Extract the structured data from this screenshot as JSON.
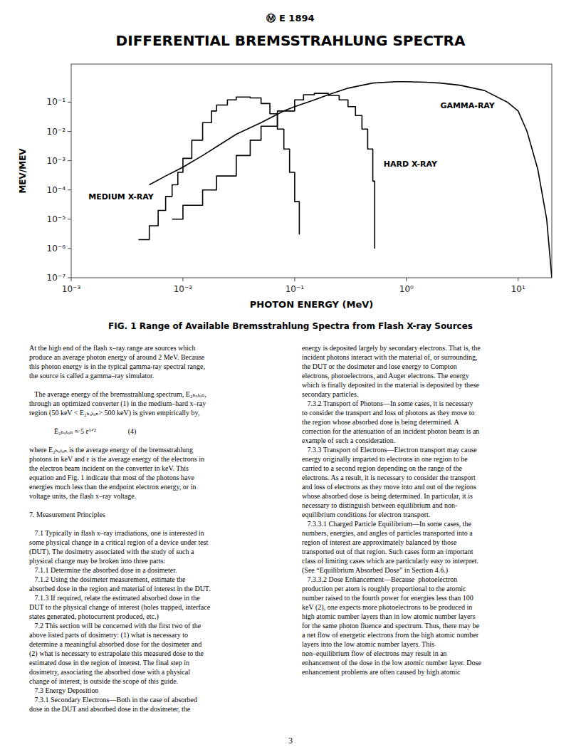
{
  "page": {
    "header": "Ⓜ E 1894",
    "caption": "FIG. 1 Range of Available Bremsstrahlung Spectra from Flash X-ray Sources",
    "page_number": "3",
    "body_text_left": [
      "At the high end of the flash x–ray range are sources which",
      "produce an average photon energy of around 2 MeV. Because",
      "this photon energy is in the typical gamma-ray spectral range,",
      "the source is called a gamma–ray simulator.",
      "",
      "   The average energy of the bremsstrahlung spectrum, E₂ₕₒₜₒₙ,",
      "through an optimized converter (1) in the medium–hard x–ray",
      "region (50 keV < E₂ₕₒₜₒₙ> 500 keV) is given empirically by,",
      "",
      "              Ē₂ₕₒₜₒₙ ≈ 5 ε¹ᐟ²                  (4)",
      "",
      "where E₂ₕₒₜₒₙ is the average energy of the bremsstrahlung",
      "photons in keV and ε is the average energy of the electrons in",
      "the electron beam incident on the converter in keV. This",
      "equation and Fig. 1 indicate that most of the photons have",
      "energies much less than the endpoint electron energy, or in",
      "voltage units, the flash x–ray voltage.",
      "",
      "7. Measurement Principles",
      "",
      "   7.1 Typically in flash x–ray irradiations, one is interested in",
      "some physical change in a critical region of a device under test",
      "(DUT). The dosimetry associated with the study of such a",
      "physical change may be broken into three parts:",
      "   7.1.1 Determine the absorbed dose in a dosimeter.",
      "   7.1.2 Using the dosimeter measurement, estimate the",
      "absorbed dose in the region and material of interest in the DUT.",
      "   7.1.3 If required, relate the estimated absorbed dose in the",
      "DUT to the physical change of interest (holes trapped, interface",
      "states generated, photocurrent produced, etc.)",
      "   7.2 This section will be concerned with the first two of the",
      "above listed parts of dosimetry: (1) what is necessary to",
      "determine a meaningful absorbed dose for the dosimeter and",
      "(2) what is necessary to extrapolate this measured dose to the",
      "estimated dose in the region of interest. The final step in",
      "dosimetry, associating the absorbed dose with a physical",
      "change of interest, is outside the scope of this guide.",
      "   7.3 Energy Deposition",
      "   7.3.1 Secondary Electrons—Both in the case of absorbed",
      "dose in the DUT and absorbed dose in the dosimeter, the"
    ],
    "body_text_right": [
      "energy is deposited largely by secondary electrons. That is, the",
      "incident photons interact with the material of, or surrounding,",
      "the DUT or the dosimeter and lose energy to Compton",
      "electrons, photoelectrons, and Auger electrons. The energy",
      "which is finally deposited in the material is deposited by these",
      "secondary particles.",
      "   7.3.2 Transport of Photons—In some cases, it is necessary",
      "to consider the transport and loss of photons as they move to",
      "the region whose absorbed dose is being determined. A",
      "correction for the attenuation of an incident photon beam is an",
      "example of such a consideration.",
      "   7.3.3 Transport of Electrons—Electron transport may cause",
      "energy originally imparted to electrons in one region to be",
      "carried to a second region depending on the range of the",
      "electrons. As a result, it is necessary to consider the transport",
      "and loss of electrons as they move into and out of the regions",
      "whose absorbed dose is being determined. In particular, it is",
      "necessary to distinguish between equilibrium and non-",
      "equilibrium conditions for electron transport.",
      "   7.3.3.1 Charged Particle Equilibrium—In some cases, the",
      "numbers, energies, and angles of particles transported into a",
      "region of interest are approximately balanced by those",
      "transported out of that region. Such cases form an important",
      "class of limiting cases which are particularly easy to interpret.",
      "(See “Equilibrium Absorbed Dose” in Section 4.6.)",
      "   7.3.3.2 Dose Enhancement—Because  photoelectron",
      "production per atom is roughly proportional to the atomic",
      "number raised to the fourth power for energies less than 100",
      "keV (2), one expects more photoelectrons to be produced in",
      "high atomic number layers than in low atomic number layers",
      "for the same photon fluence and spectrum. Thus, there may be",
      "a net flow of energetic electrons from the high atomic number",
      "layers into the low atomic number layers. This",
      "non–equilibrium flow of electrons may result in an",
      "enhancement of the dose in the low atomic number layer. Dose",
      "enhancement problems are often caused by high atomic"
    ]
  },
  "chart_data": {
    "type": "line",
    "title": "DIFFERENTIAL BREMSSTRAHLUNG SPECTRA",
    "x_label": "PHOTON ENERGY (MeV)",
    "y_label": "MEV/MEV",
    "log": true,
    "grid": false,
    "xlim": [
      0.001,
      20
    ],
    "ylim": [
      1e-07,
      2
    ],
    "xticks": [
      {
        "value": 0.001,
        "label": "10⁻³"
      },
      {
        "value": 0.01,
        "label": "10⁻²"
      },
      {
        "value": 0.1,
        "label": "10⁻¹"
      },
      {
        "value": 1,
        "label": "10⁰"
      },
      {
        "value": 10,
        "label": "10¹"
      }
    ],
    "yticks": [
      {
        "value": 1e-07,
        "label": "10⁻⁷"
      },
      {
        "value": 1e-06,
        "label": "10⁻⁶"
      },
      {
        "value": 1e-05,
        "label": "10⁻⁵"
      },
      {
        "value": 0.0001,
        "label": "10⁻⁴"
      },
      {
        "value": 0.001,
        "label": "10⁻³"
      },
      {
        "value": 0.01,
        "label": "10⁻²"
      },
      {
        "value": 0.1,
        "label": "10⁻¹"
      }
    ],
    "series": [
      {
        "type": "line",
        "color": "#000000",
        "x": [
          0.005,
          0.007,
          0.01,
          0.015,
          0.02,
          0.03,
          0.05,
          0.08,
          0.1,
          0.15,
          0.2,
          0.3,
          0.5,
          0.8,
          1.0,
          1.5,
          2.0,
          3.0,
          5.0,
          8.0,
          10.0,
          12.0,
          15.0,
          18.0,
          20.0
        ],
        "values": [
          0.00015,
          0.0003,
          0.0006,
          0.0015,
          0.003,
          0.008,
          0.02,
          0.05,
          0.07,
          0.12,
          0.18,
          0.3,
          0.45,
          0.5,
          0.5,
          0.48,
          0.45,
          0.38,
          0.25,
          0.1,
          0.05,
          0.01,
          0.0005,
          1e-05,
          1e-07
        ]
      },
      {
        "type": "step",
        "color": "#000000",
        "x": [
          0.008,
          0.01,
          0.015,
          0.02,
          0.03,
          0.04,
          0.05,
          0.07,
          0.1,
          0.12,
          0.15,
          0.2,
          0.25,
          0.3,
          0.35,
          0.4,
          0.45,
          0.5,
          0.52
        ],
        "values": [
          1e-05,
          3e-05,
          0.0001,
          0.0003,
          0.0015,
          0.005,
          0.015,
          0.05,
          0.12,
          0.18,
          0.2,
          0.17,
          0.12,
          0.07,
          0.035,
          0.012,
          0.0025,
          0.0002,
          1e-06
        ]
      },
      {
        "type": "step",
        "color": "#000000",
        "x": [
          0.004,
          0.005,
          0.006,
          0.007,
          0.008,
          0.009,
          0.01,
          0.012,
          0.015,
          0.018,
          0.02,
          0.025,
          0.03,
          0.04,
          0.05,
          0.06,
          0.07,
          0.08,
          0.09,
          0.1,
          0.11
        ],
        "values": [
          2e-06,
          6e-06,
          2e-05,
          6e-05,
          0.00015,
          0.0004,
          0.0012,
          0.005,
          0.02,
          0.05,
          0.08,
          0.12,
          0.15,
          0.14,
          0.09,
          0.04,
          0.012,
          0.0025,
          0.0004,
          4e-05,
          3e-06
        ]
      }
    ],
    "annotations": [
      {
        "text": "GAMMA-RAY"
      },
      {
        "text": "HARD X-RAY"
      },
      {
        "text": "MEDIUM X-RAY"
      }
    ]
  }
}
